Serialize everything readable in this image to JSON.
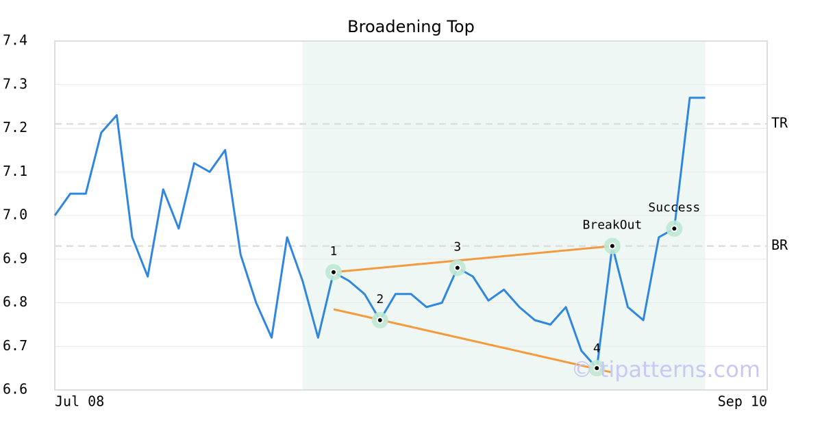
{
  "chart_data": {
    "type": "line",
    "title": "Broadening Top",
    "x": [
      0,
      1,
      2,
      3,
      4,
      5,
      6,
      7,
      8,
      9,
      10,
      11,
      12,
      13,
      14,
      15,
      16,
      17,
      18,
      19,
      20,
      21,
      22,
      23,
      24,
      25,
      26,
      27,
      28,
      29,
      30,
      31,
      32,
      33,
      34,
      35,
      36,
      37,
      38,
      39,
      40,
      41,
      42
    ],
    "values": [
      7.0,
      7.05,
      7.05,
      7.19,
      7.23,
      6.95,
      6.86,
      7.06,
      6.97,
      7.12,
      7.1,
      7.15,
      6.91,
      6.8,
      6.72,
      6.95,
      6.85,
      6.72,
      6.87,
      6.85,
      6.82,
      6.76,
      6.82,
      6.82,
      6.79,
      6.8,
      6.88,
      6.86,
      6.805,
      6.83,
      6.79,
      6.76,
      6.75,
      6.79,
      6.69,
      6.65,
      6.93,
      6.79,
      6.76,
      6.95,
      6.97,
      7.27,
      7.27
    ],
    "color": "#2e86de",
    "xlim": [
      0,
      46
    ],
    "xticks": [
      {
        "value": 0,
        "label": "Jul 08"
      },
      {
        "value": 46,
        "label": "Sep 10"
      }
    ],
    "ylim": [
      6.6,
      7.4
    ],
    "yticks": [
      6.6,
      6.7,
      6.8,
      6.9,
      {
        "value": 7.0,
        "label": "7.0"
      },
      7.1,
      7.2,
      7.3,
      7.4
    ],
    "grid": true,
    "shaded_region": [
      16,
      42
    ],
    "hlines": [
      {
        "value": 7.21,
        "label": "TR"
      },
      {
        "value": 6.93,
        "label": "BR"
      }
    ],
    "trend_lines": [
      {
        "x": [
          18,
          36
        ],
        "y": [
          6.87,
          6.93
        ]
      },
      {
        "x": [
          18,
          36
        ],
        "y": [
          6.785,
          6.64
        ]
      }
    ],
    "points": [
      {
        "x": 18,
        "y": 6.87,
        "label": "1"
      },
      {
        "x": 21,
        "y": 6.76,
        "label": "2"
      },
      {
        "x": 26,
        "y": 6.88,
        "label": "3"
      },
      {
        "x": 35,
        "y": 6.65,
        "label": "4"
      },
      {
        "x": 36,
        "y": 6.93,
        "label": "BreakOut"
      },
      {
        "x": 40,
        "y": 6.97,
        "label": "Success"
      }
    ],
    "watermark": "© tipatterns.com"
  }
}
